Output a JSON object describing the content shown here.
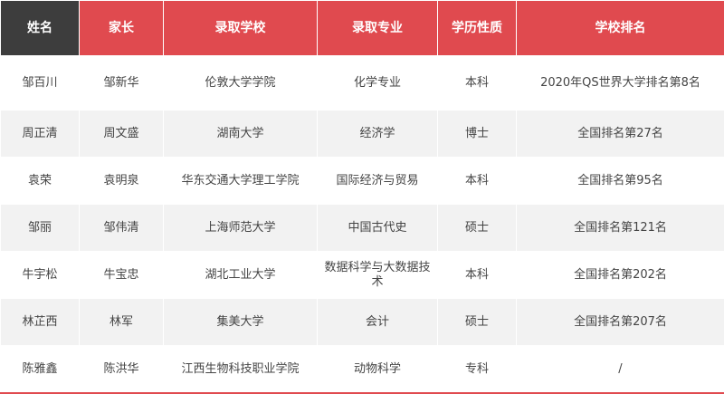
{
  "headers": [
    "姓名",
    "家长",
    "录取学校",
    "录取专业",
    "学历性质",
    "学校排名"
  ],
  "colors": {
    "header": "#e04a4f",
    "first_header": "#3d3d3d",
    "stripe": "#f2f2f2"
  },
  "rows": [
    [
      "邹百川",
      "邹新华",
      "伦敦大学学院",
      "化学专业",
      "本科",
      "2020年QS世界大学排名第8名"
    ],
    [
      "周正清",
      "周文盛",
      "湖南大学",
      "经济学",
      "博士",
      "全国排名第27名"
    ],
    [
      "袁荣",
      "袁明泉",
      "华东交通大学理工学院",
      "国际经济与贸易",
      "本科",
      "全国排名第95名"
    ],
    [
      "邹丽",
      "邹伟清",
      "上海师范大学",
      "中国古代史",
      "硕士",
      "全国排名第121名"
    ],
    [
      "牛宇松",
      "牛宝忠",
      "湖北工业大学",
      "数据科学与大数据技术",
      "本科",
      "全国排名第202名"
    ],
    [
      "林芷西",
      "林军",
      "集美大学",
      "会计",
      "硕士",
      "全国排名第207名"
    ],
    [
      "陈雅鑫",
      "陈洪华",
      "江西生物科技职业学院",
      "动物科学",
      "专科",
      "/"
    ]
  ]
}
